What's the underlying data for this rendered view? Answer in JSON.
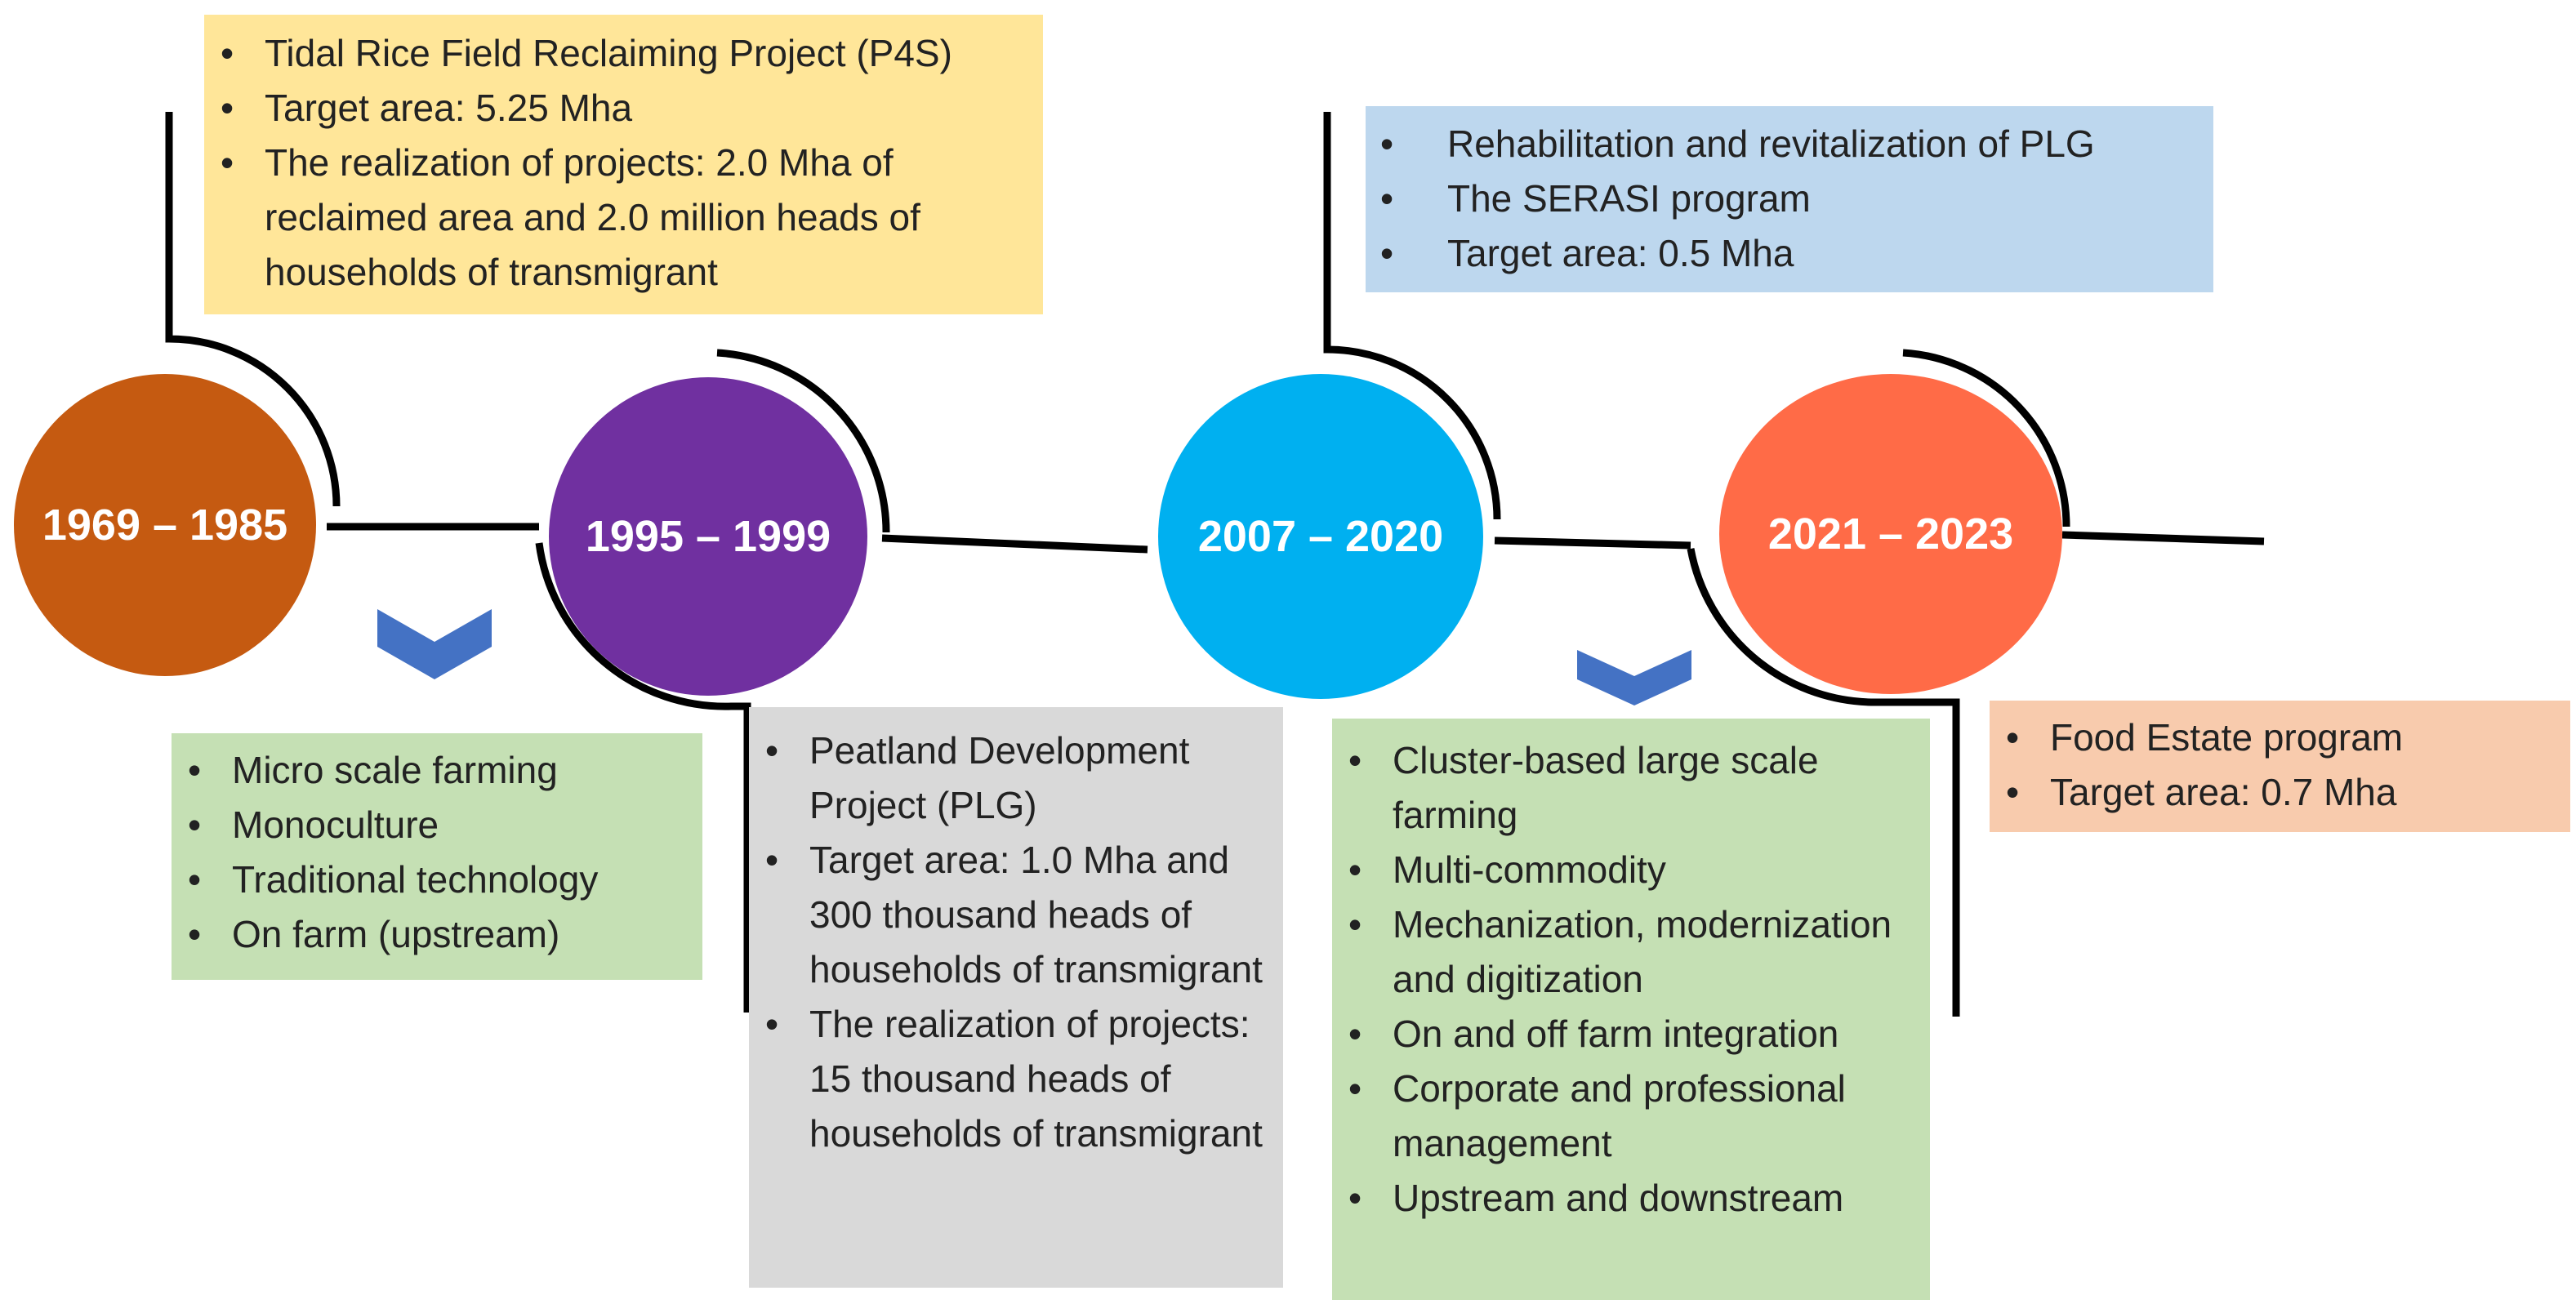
{
  "eras": [
    {
      "label": "1969 – 1985",
      "color": "#C55A11"
    },
    {
      "label": "1995 – 1999",
      "color": "#7030A0"
    },
    {
      "label": "2007 – 2020",
      "color": "#00B0F0"
    },
    {
      "label": "2021 – 2023",
      "color": "#FF6B47"
    }
  ],
  "boxes": {
    "p4s": {
      "color": "#FFE699",
      "items": [
        "Tidal Rice Field Reclaiming Project (P4S)",
        "Target area: 5.25 Mha",
        "The realization of projects: 2.0 Mha of reclaimed area and 2.0 million heads of households of transmigrant"
      ]
    },
    "serasi": {
      "color": "#BDD7EE",
      "items": [
        "Rehabilitation and revitalization of PLG",
        "The SERASI program",
        "Target area: 0.5 Mha"
      ]
    },
    "old_farming": {
      "color": "#C5E0B4",
      "items": [
        "Micro scale farming",
        "Monoculture",
        "Traditional technology",
        "On farm (upstream)"
      ]
    },
    "plg": {
      "color": "#D9D9D9",
      "items": [
        "Peatland Development Project (PLG)",
        "Target area: 1.0 Mha and 300 thousand heads of households of transmigrant",
        "The realization of projects: 15 thousand heads of households of transmigrant"
      ]
    },
    "new_farming": {
      "color": "#C5E0B4",
      "items": [
        "Cluster-based large scale farming",
        "Multi-commodity",
        "Mechanization, modernization and digitization",
        "On and off farm integration",
        "Corporate and professional management",
        "Upstream and downstream"
      ]
    },
    "food_estate": {
      "color": "#F8CBAD",
      "items": [
        "Food Estate program",
        "Target area: 0.7 Mha"
      ]
    }
  },
  "chevron_color": "#4472C4"
}
